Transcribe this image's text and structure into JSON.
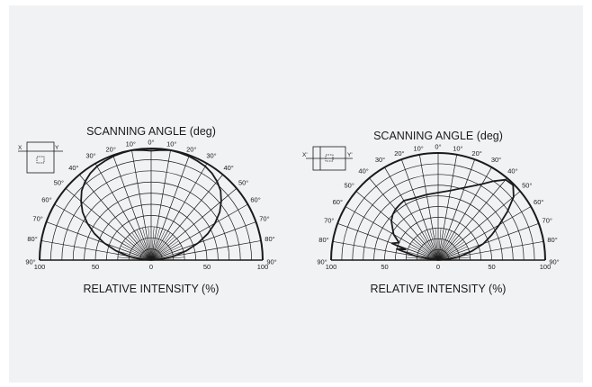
{
  "chart_data": [
    {
      "type": "polar",
      "title": "SCANNING ANGLE (deg)",
      "xlabel": "RELATIVE INTENSITY  (%)",
      "axis_labels": {
        "x": "X",
        "y": "Y"
      },
      "angle_tick_labels": [
        "0°",
        "10°",
        "10°",
        "20°",
        "20°",
        "30°",
        "30°",
        "40°",
        "40°",
        "50°",
        "50°",
        "60°",
        "60°",
        "70°",
        "70°",
        "80°",
        "80°",
        "90°",
        "90°"
      ],
      "intensity_tick_labels": [
        "100",
        "50",
        "0",
        "50",
        "100"
      ],
      "rlim": [
        0,
        100
      ],
      "angles_deg": [
        -90,
        -85,
        -80,
        -75,
        -70,
        -65,
        -60,
        -55,
        -50,
        -45,
        -40,
        -35,
        -30,
        -25,
        -20,
        -15,
        -10,
        -5,
        0,
        5,
        10,
        15,
        20,
        25,
        30,
        35,
        40,
        45,
        50,
        55,
        60,
        65,
        70,
        75,
        80,
        85,
        90
      ],
      "values": [
        0,
        10,
        21,
        33,
        45,
        56,
        66,
        75,
        82,
        88,
        92,
        95,
        97,
        98,
        99,
        99.5,
        100,
        99,
        98,
        99,
        100,
        99.5,
        99,
        98,
        97,
        95,
        92,
        88,
        82,
        75,
        66,
        56,
        45,
        33,
        21,
        10,
        0
      ]
    },
    {
      "type": "polar",
      "title": "SCANNING ANGLE (deg)",
      "xlabel": "RELATIVE INTENSITY  (%)",
      "axis_labels": {
        "x": "X'",
        "y": "Y'"
      },
      "angle_tick_labels": [
        "0°",
        "10°",
        "10°",
        "20°",
        "20°",
        "30°",
        "30°",
        "40°",
        "40°",
        "50°",
        "50°",
        "60°",
        "60°",
        "70°",
        "70°",
        "80°",
        "80°",
        "90°",
        "90°"
      ],
      "intensity_tick_labels": [
        "100",
        "50",
        "0",
        "50",
        "100"
      ],
      "rlim": [
        0,
        100
      ],
      "angles_deg": [
        -90,
        -80,
        -75,
        -72,
        -70,
        -66,
        -60,
        -55,
        -50,
        -45,
        -40,
        -35,
        -30,
        -20,
        -10,
        0,
        10,
        20,
        30,
        35,
        40,
        45,
        50,
        55,
        60,
        65,
        70,
        75,
        80,
        85,
        90
      ],
      "values": [
        0,
        21,
        40,
        32,
        46,
        40,
        48,
        52,
        57,
        60,
        62,
        63,
        64,
        62,
        62,
        63,
        66,
        72,
        82,
        90,
        98,
        99,
        92,
        79,
        66,
        55,
        45,
        33,
        21,
        10,
        0
      ]
    }
  ]
}
